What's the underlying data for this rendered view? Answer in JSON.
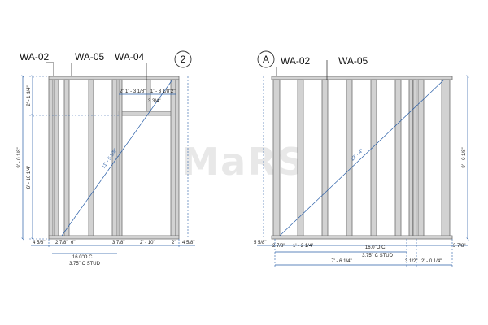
{
  "watermark": "MaRS",
  "left": {
    "tags": [
      "WA-02",
      "WA-05",
      "WA-04"
    ],
    "circle": "2",
    "dims": {
      "height_total": "9' - 0 1/8\"",
      "height_lower": "6' - 10 1/4\"",
      "height_upper": "2' - 1 3/4\"",
      "diagonal": "11' - 5 5/8\"",
      "top_1": "2\"",
      "top_2": "1' - 3 1/8\"",
      "top_3": "1' - 3 1/8\"",
      "top_4": "2\"",
      "header_thk": "3 3/4\"",
      "bottom_1": "4 5/8\"",
      "bottom_2": "2 7/8\"",
      "bottom_3": "6\"",
      "bottom_4": "3 7/8\"",
      "bottom_5": "2' - 10\"",
      "bottom_6": "2\"",
      "bottom_7": "4 5/8\"",
      "spacing": "16.0\"O.C.",
      "stud": "3.75\" C STUD"
    }
  },
  "right": {
    "circle": "A",
    "tags": [
      "WA-02",
      "WA-05"
    ],
    "dims": {
      "height_total": "9' - 0 1/8\"",
      "diagonal": "12' - 4\"",
      "left_edge": "5 5/8\"",
      "bottom_1": "2 7/8\"",
      "bottom_2": "1' - 2 1/4\"",
      "bottom_3": "3 7/8\"",
      "spacing": "16.0\"O.C.",
      "stud": "3.75\" C STUD",
      "overall_1": "7' - 6 1/4\"",
      "overall_2": "3 1/2\"",
      "overall_3": "2' - 0 1/4\""
    }
  }
}
